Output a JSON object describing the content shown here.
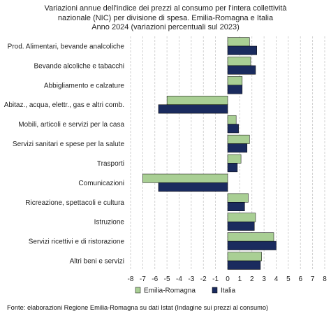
{
  "chart_data": {
    "type": "bar",
    "orientation": "horizontal",
    "title_lines": [
      "Variazioni annue dell'indice dei prezzi al consumo per l'intera collettività",
      "nazionale (NIC) per divisione di spesa. Emilia-Romagna e Italia",
      "Anno 2024 (variazioni percentuali sul 2023)"
    ],
    "categories": [
      "Prod. Alimentari, bevande analcoliche",
      "Bevande alcoliche e tabacchi",
      "Abbigliamento e calzature",
      "Abitaz., acqua, elettr., gas e altri comb.",
      "Mobili, articoli e servizi per la casa",
      "Servizi sanitari e spese per la salute",
      "Trasporti",
      "Comunicazioni",
      "Ricreazione, spettacoli e cultura",
      "Istruzione",
      "Servizi ricettivi e di ristorazione",
      "Altri beni e servizi"
    ],
    "series": [
      {
        "name": "Emilia-Romagna",
        "color": "#a9cf94",
        "values": [
          1.8,
          1.9,
          1.2,
          -5.0,
          0.7,
          1.8,
          1.1,
          -7.0,
          1.7,
          2.3,
          3.8,
          2.8
        ]
      },
      {
        "name": "Italia",
        "color": "#1a2b5e",
        "values": [
          2.4,
          2.3,
          1.2,
          -5.7,
          0.9,
          1.6,
          0.8,
          -5.7,
          1.4,
          2.2,
          4.0,
          2.7
        ]
      }
    ],
    "xlim": [
      -8,
      8
    ],
    "xticks": [
      "-8",
      "-7",
      "-6",
      "-5",
      "-4",
      "-3",
      "-2",
      "-1",
      "0",
      "1",
      "2",
      "3",
      "4",
      "5",
      "6",
      "7",
      "8"
    ],
    "grid": true,
    "legend_position": "bottom"
  },
  "source": "Fonte: elaborazioni Regione Emilia-Romagna su dati Istat (Indagine sui prezzi al consumo)"
}
